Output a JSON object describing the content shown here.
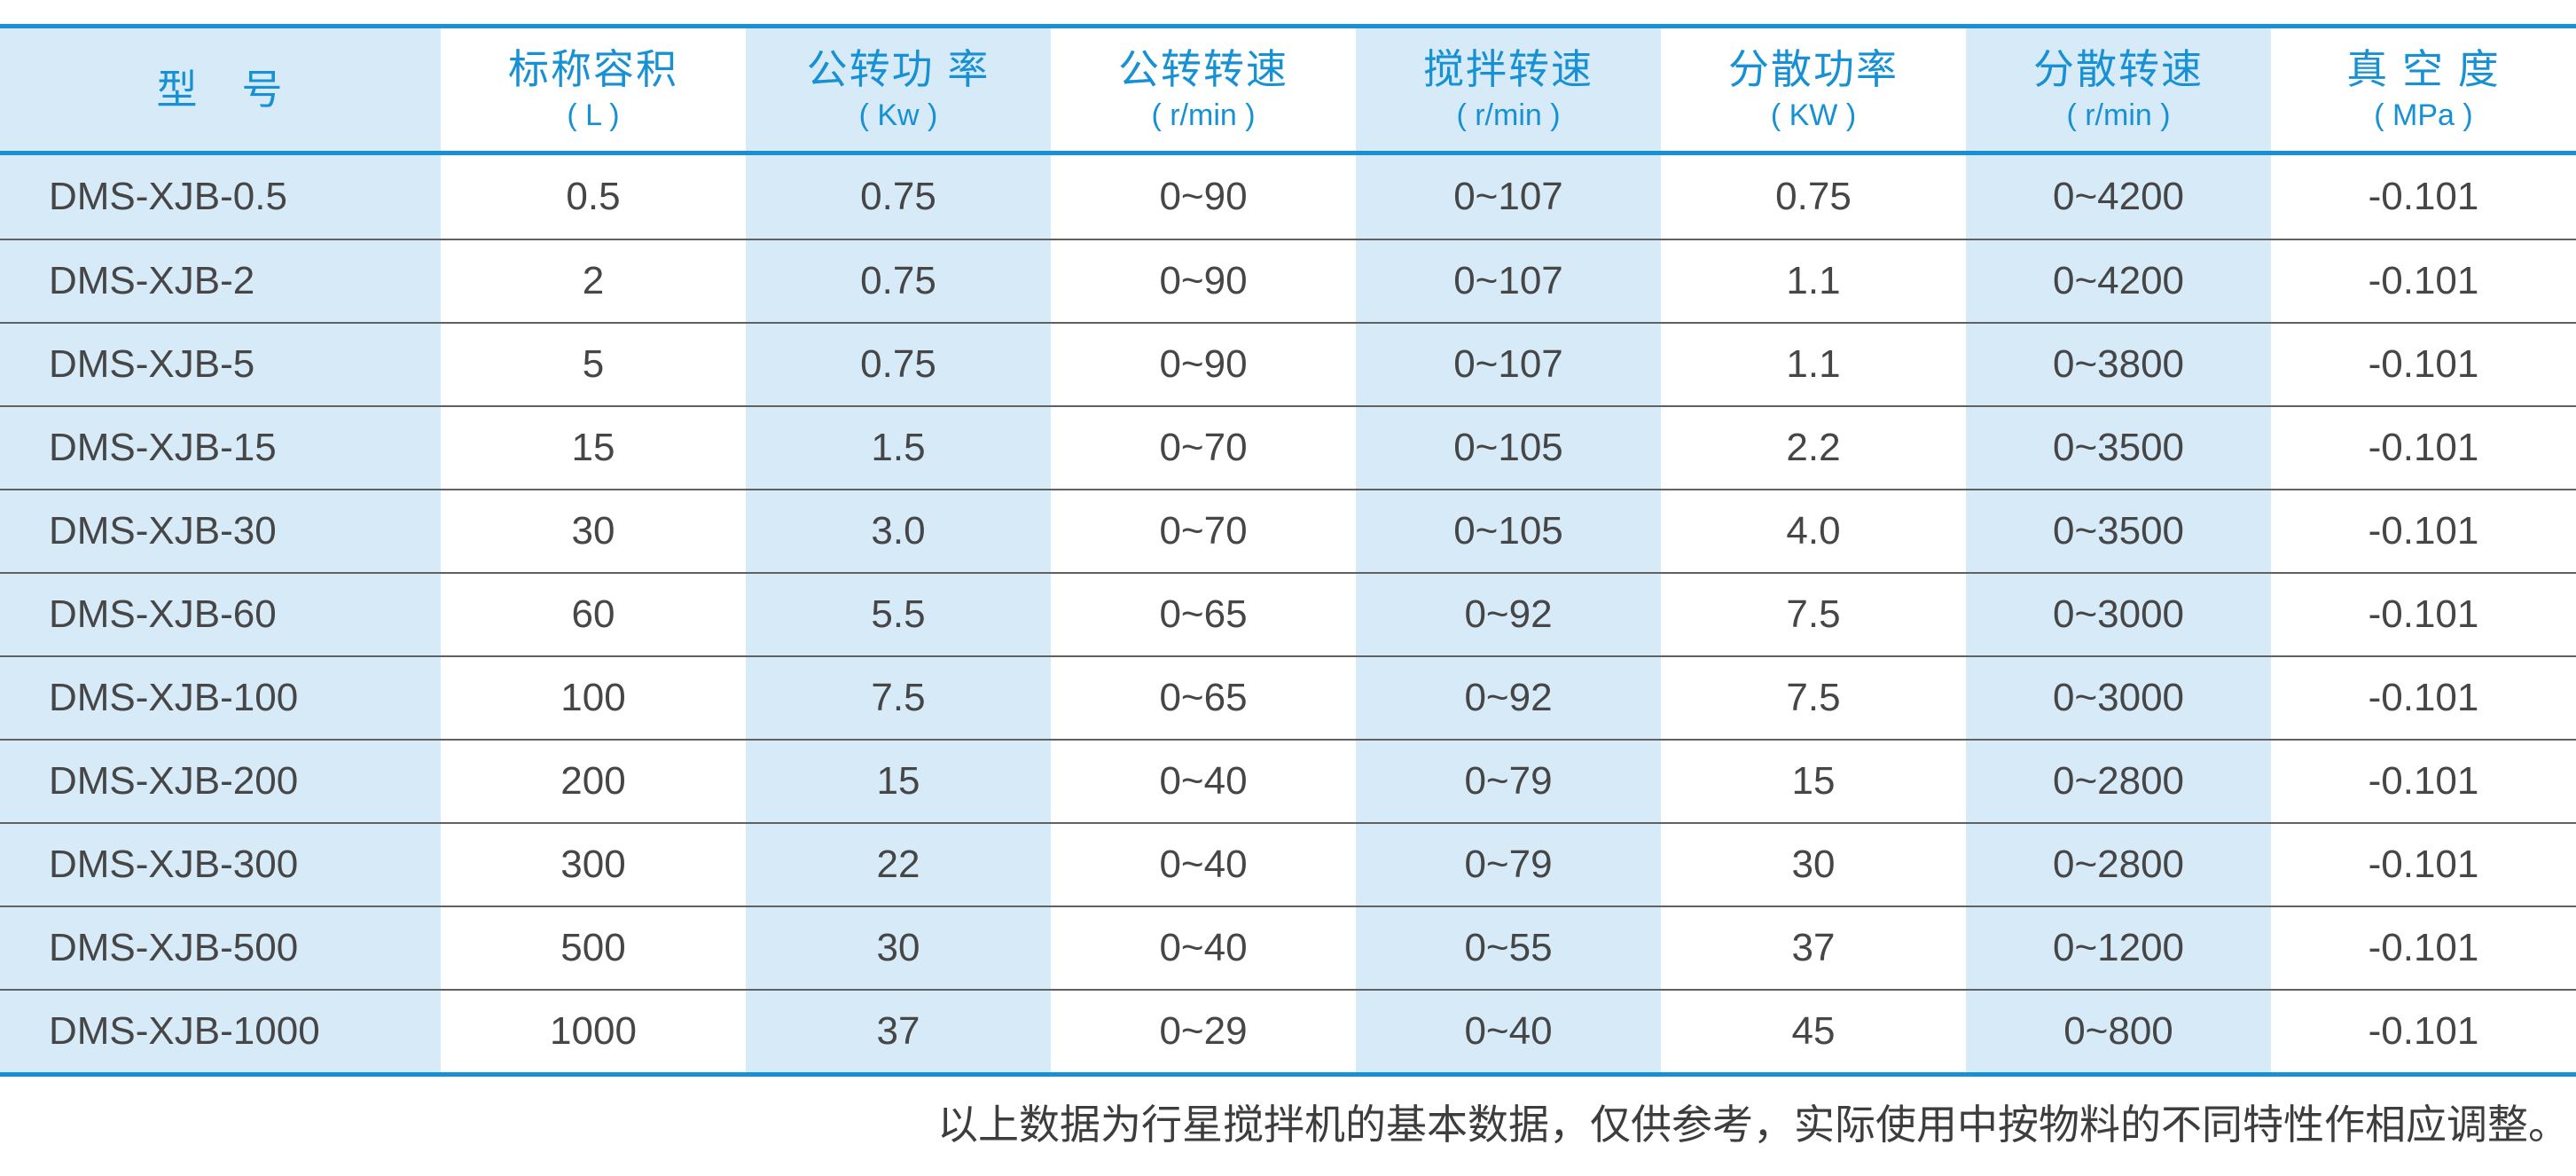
{
  "table": {
    "columns": [
      {
        "label": "型　号",
        "unit": ""
      },
      {
        "label": "标称容积",
        "unit": "( L )"
      },
      {
        "label": "公转功 率",
        "unit": "( Kw )"
      },
      {
        "label": "公转转速",
        "unit": "( r/min )"
      },
      {
        "label": "搅拌转速",
        "unit": "( r/min )"
      },
      {
        "label": "分散功率",
        "unit": "( KW )"
      },
      {
        "label": "分散转速",
        "unit": "( r/min )"
      },
      {
        "label": "真 空 度",
        "unit": "( MPa )"
      }
    ],
    "rows": [
      [
        "DMS-XJB-0.5",
        "0.5",
        "0.75",
        "0~90",
        "0~107",
        "0.75",
        "0~4200",
        "-0.101"
      ],
      [
        "DMS-XJB-2",
        "2",
        "0.75",
        "0~90",
        "0~107",
        "1.1",
        "0~4200",
        "-0.101"
      ],
      [
        "DMS-XJB-5",
        "5",
        "0.75",
        "0~90",
        "0~107",
        "1.1",
        "0~3800",
        "-0.101"
      ],
      [
        "DMS-XJB-15",
        "15",
        "1.5",
        "0~70",
        "0~105",
        "2.2",
        "0~3500",
        "-0.101"
      ],
      [
        "DMS-XJB-30",
        "30",
        "3.0",
        "0~70",
        "0~105",
        "4.0",
        "0~3500",
        "-0.101"
      ],
      [
        "DMS-XJB-60",
        "60",
        "5.5",
        "0~65",
        "0~92",
        "7.5",
        "0~3000",
        "-0.101"
      ],
      [
        "DMS-XJB-100",
        "100",
        "7.5",
        "0~65",
        "0~92",
        "7.5",
        "0~3000",
        "-0.101"
      ],
      [
        "DMS-XJB-200",
        "200",
        "15",
        "0~40",
        "0~79",
        "15",
        "0~2800",
        "-0.101"
      ],
      [
        "DMS-XJB-300",
        "300",
        "22",
        "0~40",
        "0~79",
        "30",
        "0~2800",
        "-0.101"
      ],
      [
        "DMS-XJB-500",
        "500",
        "30",
        "0~40",
        "0~55",
        "37",
        "0~1200",
        "-0.101"
      ],
      [
        "DMS-XJB-1000",
        "1000",
        "37",
        "0~29",
        "0~40",
        "45",
        "0~800",
        "-0.101"
      ]
    ]
  },
  "footnote": "以上数据为行星搅拌机的基本数据，仅供参考，实际使用中按物料的不同特性作相应调整。",
  "colors": {
    "accent_blue": "#1791d3",
    "stripe_blue": "#d7eaf8",
    "body_text": "#464646",
    "note_text": "#3d3d3d"
  }
}
